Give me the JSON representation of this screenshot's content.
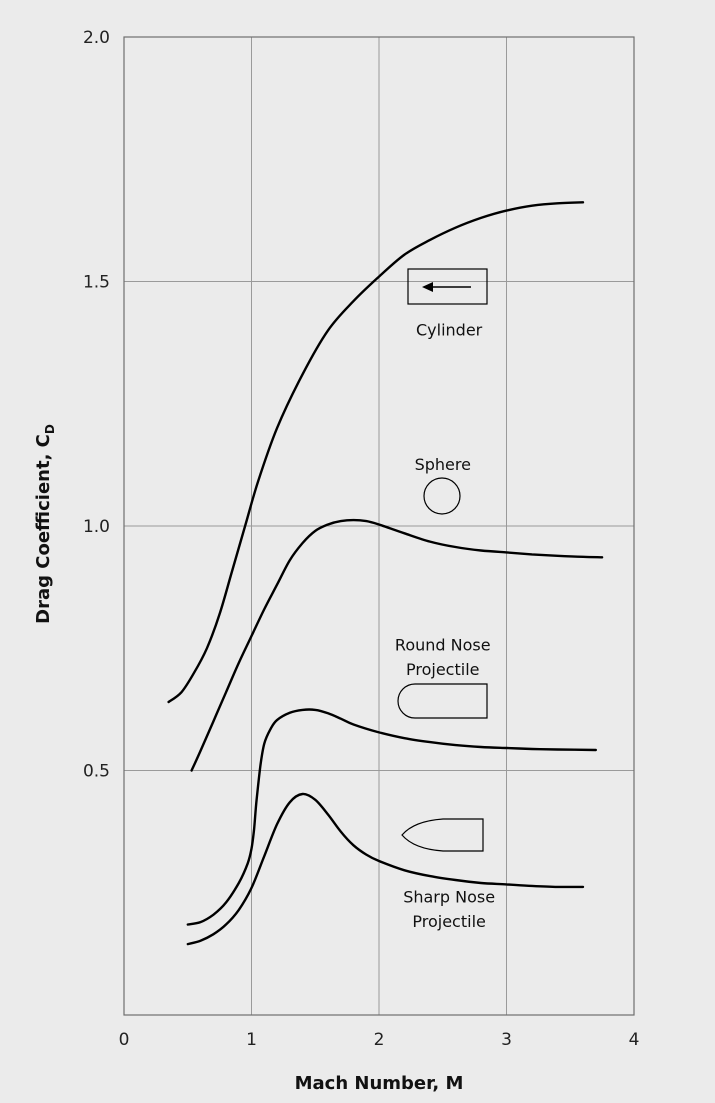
{
  "chart_data": {
    "type": "line",
    "title": "",
    "xlabel": "Mach Number, M",
    "ylabel_main": "Drag Coefficient, C",
    "ylabel_sub": "D",
    "xlim": [
      0,
      4
    ],
    "ylim": [
      0,
      2
    ],
    "grid": true,
    "x_ticks": [
      0,
      1,
      2,
      3,
      4
    ],
    "x_tick_labels": [
      "0",
      "1",
      "2",
      "3",
      "4"
    ],
    "y_ticks": [
      0.5,
      1.0,
      1.5,
      2.0
    ],
    "y_tick_labels": [
      "0.5",
      "1.0",
      "1.5",
      "2.0"
    ],
    "series": [
      {
        "name": "Cylinder",
        "points": [
          [
            0.35,
            0.64
          ],
          [
            0.45,
            0.66
          ],
          [
            0.55,
            0.7
          ],
          [
            0.65,
            0.75
          ],
          [
            0.75,
            0.82
          ],
          [
            0.85,
            0.91
          ],
          [
            0.95,
            1.0
          ],
          [
            1.05,
            1.09
          ],
          [
            1.2,
            1.2
          ],
          [
            1.4,
            1.31
          ],
          [
            1.6,
            1.4
          ],
          [
            1.8,
            1.46
          ],
          [
            2.0,
            1.51
          ],
          [
            2.2,
            1.555
          ],
          [
            2.4,
            1.585
          ],
          [
            2.6,
            1.61
          ],
          [
            2.8,
            1.63
          ],
          [
            3.0,
            1.645
          ],
          [
            3.2,
            1.655
          ],
          [
            3.4,
            1.66
          ],
          [
            3.6,
            1.662
          ]
        ]
      },
      {
        "name": "Sphere",
        "points": [
          [
            0.53,
            0.5
          ],
          [
            0.6,
            0.54
          ],
          [
            0.7,
            0.6
          ],
          [
            0.8,
            0.66
          ],
          [
            0.9,
            0.72
          ],
          [
            1.0,
            0.775
          ],
          [
            1.1,
            0.83
          ],
          [
            1.2,
            0.88
          ],
          [
            1.3,
            0.93
          ],
          [
            1.4,
            0.965
          ],
          [
            1.5,
            0.99
          ],
          [
            1.6,
            1.003
          ],
          [
            1.7,
            1.01
          ],
          [
            1.8,
            1.012
          ],
          [
            1.9,
            1.01
          ],
          [
            2.0,
            1.003
          ],
          [
            2.2,
            0.985
          ],
          [
            2.4,
            0.968
          ],
          [
            2.6,
            0.957
          ],
          [
            2.8,
            0.95
          ],
          [
            3.0,
            0.946
          ],
          [
            3.2,
            0.942
          ],
          [
            3.4,
            0.939
          ],
          [
            3.6,
            0.937
          ],
          [
            3.75,
            0.936
          ]
        ]
      },
      {
        "name": "Round Nose Projectile",
        "points": [
          [
            0.5,
            0.185
          ],
          [
            0.6,
            0.19
          ],
          [
            0.7,
            0.205
          ],
          [
            0.8,
            0.23
          ],
          [
            0.9,
            0.27
          ],
          [
            0.97,
            0.31
          ],
          [
            1.0,
            0.34
          ],
          [
            1.02,
            0.38
          ],
          [
            1.04,
            0.44
          ],
          [
            1.07,
            0.51
          ],
          [
            1.1,
            0.555
          ],
          [
            1.15,
            0.585
          ],
          [
            1.2,
            0.603
          ],
          [
            1.3,
            0.618
          ],
          [
            1.4,
            0.624
          ],
          [
            1.5,
            0.624
          ],
          [
            1.6,
            0.617
          ],
          [
            1.7,
            0.606
          ],
          [
            1.8,
            0.594
          ],
          [
            2.0,
            0.578
          ],
          [
            2.2,
            0.566
          ],
          [
            2.4,
            0.558
          ],
          [
            2.6,
            0.552
          ],
          [
            2.8,
            0.548
          ],
          [
            3.0,
            0.546
          ],
          [
            3.2,
            0.544
          ],
          [
            3.4,
            0.543
          ],
          [
            3.7,
            0.542
          ]
        ]
      },
      {
        "name": "Sharp Nose Projectile",
        "points": [
          [
            0.5,
            0.145
          ],
          [
            0.6,
            0.152
          ],
          [
            0.7,
            0.165
          ],
          [
            0.8,
            0.185
          ],
          [
            0.9,
            0.215
          ],
          [
            1.0,
            0.26
          ],
          [
            1.1,
            0.325
          ],
          [
            1.2,
            0.39
          ],
          [
            1.3,
            0.435
          ],
          [
            1.4,
            0.452
          ],
          [
            1.5,
            0.44
          ],
          [
            1.6,
            0.41
          ],
          [
            1.7,
            0.375
          ],
          [
            1.8,
            0.347
          ],
          [
            1.9,
            0.328
          ],
          [
            2.0,
            0.315
          ],
          [
            2.2,
            0.296
          ],
          [
            2.4,
            0.284
          ],
          [
            2.6,
            0.276
          ],
          [
            2.8,
            0.27
          ],
          [
            3.0,
            0.267
          ],
          [
            3.2,
            0.264
          ],
          [
            3.4,
            0.262
          ],
          [
            3.6,
            0.262
          ]
        ]
      }
    ],
    "annotations": [
      {
        "text": "Cylinder",
        "x": 2.55,
        "y": 1.39
      },
      {
        "text": "Sphere",
        "x": 2.5,
        "y": 1.115
      },
      {
        "text": "Round Nose",
        "x": 2.5,
        "y": 0.745
      },
      {
        "text": "Projectile",
        "x": 2.5,
        "y": 0.695
      },
      {
        "text": "Sharp Nose",
        "x": 2.55,
        "y": 0.23
      },
      {
        "text": "Projectile",
        "x": 2.55,
        "y": 0.18
      }
    ]
  }
}
